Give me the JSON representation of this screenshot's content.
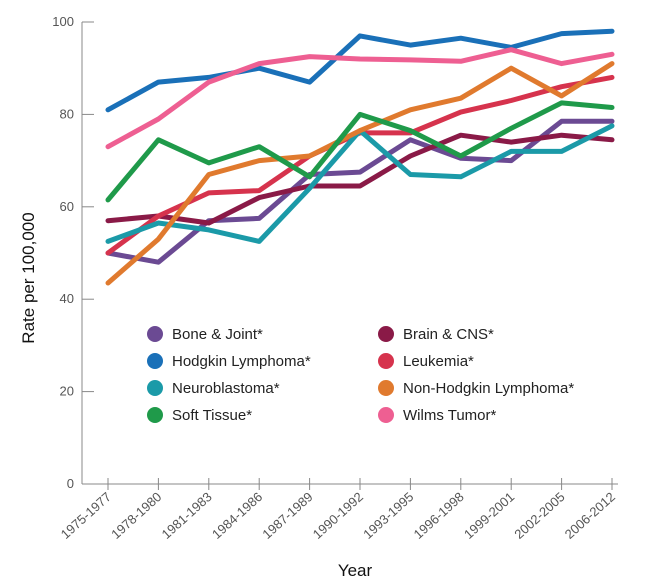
{
  "chart_data": {
    "type": "line",
    "title": "",
    "xlabel": "Year",
    "ylabel": "Rate per 100,000",
    "ylim": [
      0,
      100
    ],
    "yticks": [
      0,
      20,
      40,
      60,
      80,
      100
    ],
    "ytick_labels": [
      "0",
      "20",
      "40",
      "60",
      "80",
      "100"
    ],
    "categories": [
      "1975-1977",
      "1978-1980",
      "1981-1983",
      "1984-1986",
      "1987-1989",
      "1990-1992",
      "1993-1995",
      "1996-1998",
      "1999-2001",
      "2002-2005",
      "2006-2012"
    ],
    "legend_position": "lower-center-inside",
    "series": [
      {
        "name": "Bone & Joint*",
        "color": "#6b4a93",
        "values": [
          50,
          48,
          57,
          57.5,
          67,
          67.5,
          74.5,
          70.5,
          70,
          78.5,
          78.5
        ]
      },
      {
        "name": "Brain & CNS*",
        "color": "#8a1a47",
        "values": [
          57,
          58,
          56.5,
          62,
          64.5,
          64.5,
          71,
          75.5,
          74,
          75.5,
          74.5
        ]
      },
      {
        "name": "Hodgkin Lymphoma*",
        "color": "#1a70b8",
        "values": [
          81,
          87,
          88,
          90,
          87,
          97,
          95,
          96.5,
          94.5,
          97.5,
          98
        ]
      },
      {
        "name": "Leukemia*",
        "color": "#d6334d",
        "values": [
          50,
          58,
          63,
          63.5,
          71,
          76,
          76,
          80.5,
          83,
          86,
          88
        ]
      },
      {
        "name": "Neuroblastoma*",
        "color": "#1b9aa8",
        "values": [
          52.5,
          56.5,
          55,
          52.5,
          64,
          76.5,
          67,
          66.5,
          72,
          72,
          77.5
        ]
      },
      {
        "name": "Non-Hodgkin Lymphoma*",
        "color": "#e07a2e",
        "values": [
          43.5,
          53,
          67,
          70,
          71,
          76.5,
          81,
          83.5,
          90,
          84,
          91
        ]
      },
      {
        "name": "Soft Tissue*",
        "color": "#1f9a4a",
        "values": [
          61.5,
          74.5,
          69.5,
          73,
          66.5,
          80,
          76.5,
          71,
          77,
          82.5,
          81.5
        ]
      },
      {
        "name": "Wilms Tumor*",
        "color": "#ee5f92",
        "values": [
          73,
          79,
          87,
          91,
          92.5,
          92,
          91.8,
          91.5,
          94,
          91,
          93
        ]
      }
    ]
  }
}
